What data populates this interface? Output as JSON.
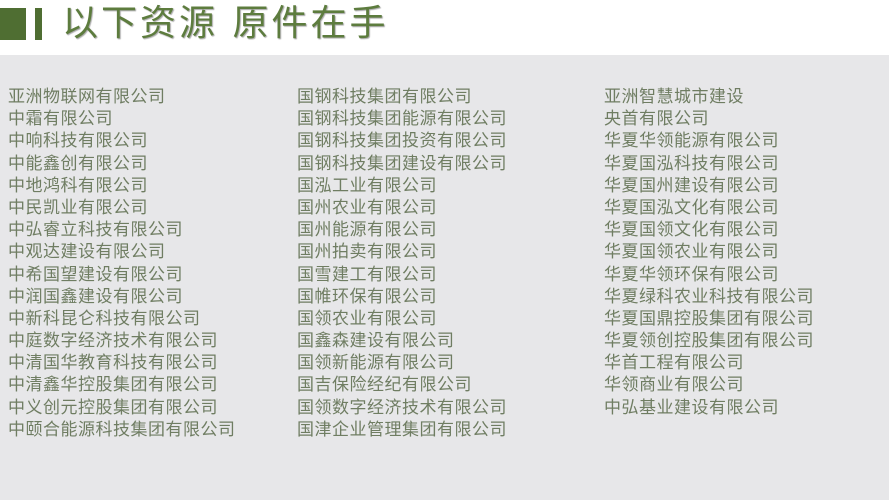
{
  "header": {
    "title": "以下资源 原件在手",
    "accent_color": "#4f6e32"
  },
  "columns": [
    [
      "亚洲物联网有限公司",
      "中霜有限公司",
      "中响科技有限公司",
      "中能鑫创有限公司",
      "中地鸿科有限公司",
      "中民凯业有限公司",
      "中弘睿立科技有限公司",
      "中观达建设有限公司",
      "中希国望建设有限公司",
      "中润国鑫建设有限公司",
      "中新科昆仑科技有限公司",
      "中庭数字经济技术有限公司",
      "中清国华教育科技有限公司",
      "中清鑫华控股集团有限公司",
      "中义创元控股集团有限公司",
      "中颐合能源科技集团有限公司"
    ],
    [
      "国钢科技集团有限公司",
      "国钢科技集团能源有限公司",
      "国钢科技集团投资有限公司",
      "国钢科技集团建设有限公司",
      "国泓工业有限公司",
      "国州农业有限公司",
      "国州能源有限公司",
      "国州拍卖有限公司",
      "国雪建工有限公司",
      "国帷环保有限公司",
      "国领农业有限公司",
      "国鑫森建设有限公司",
      "国领新能源有限公司",
      "国吉保险经纪有限公司",
      "国领数字经济技术有限公司",
      "国津企业管理集团有限公司"
    ],
    [
      "亚洲智慧城市建设",
      "央首有限公司",
      "华夏华领能源有限公司",
      "华夏国泓科技有限公司",
      "华夏国州建设有限公司",
      "华夏国泓文化有限公司",
      "华夏国领文化有限公司",
      "华夏国领农业有限公司",
      "华夏华领环保有限公司",
      "华夏绿科农业科技有限公司",
      "华夏国鼎控股集团有限公司",
      "华夏领创控股集团有限公司",
      "华首工程有限公司",
      "华领商业有限公司",
      "中弘基业建设有限公司"
    ]
  ]
}
